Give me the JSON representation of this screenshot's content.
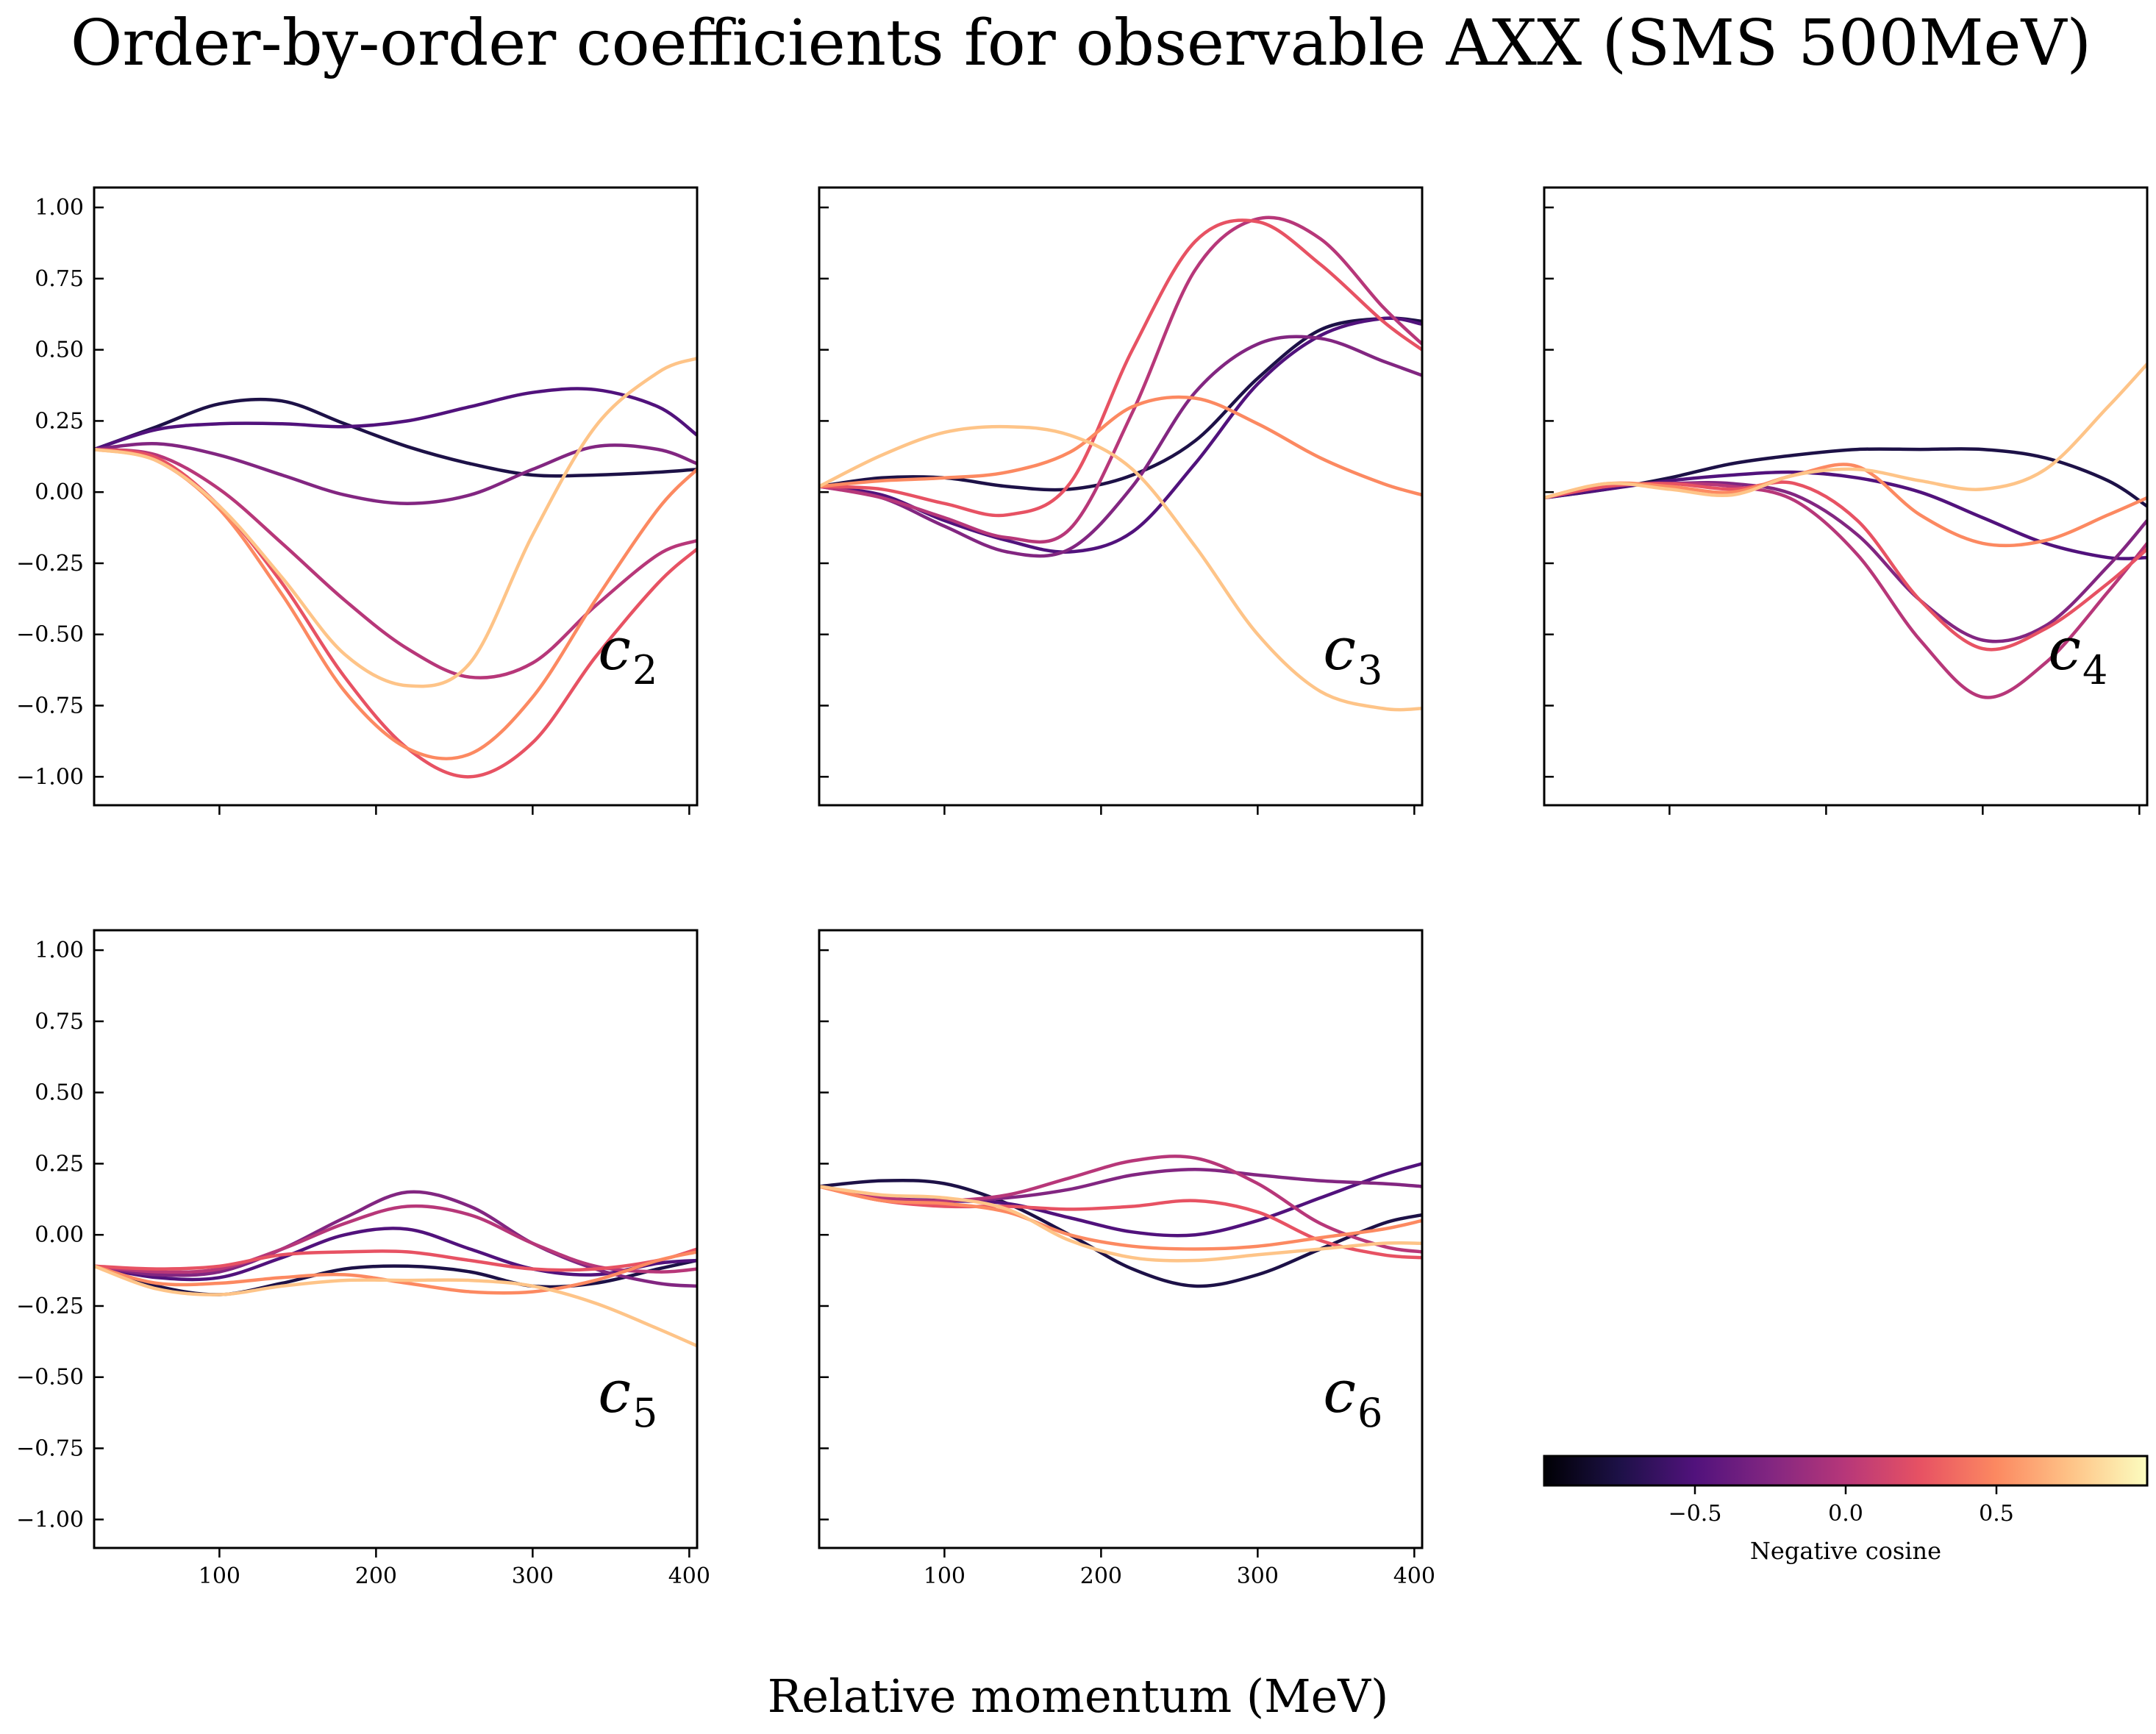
{
  "figure": {
    "title": "Order-by-order coefficients for observable AXX (SMS 500MeV)",
    "xlabel": "Relative momentum (MeV)"
  },
  "colorbar": {
    "label": "Negative cosine",
    "range": [
      -1,
      1
    ],
    "ticks": [
      -0.5,
      0.0,
      0.5
    ],
    "tick_labels": [
      "−0.5",
      "0.0",
      "0.5"
    ],
    "colormap": "magma",
    "stops": [
      "#000004",
      "#1d1147",
      "#51127c",
      "#822681",
      "#b73779",
      "#e75263",
      "#fc8961",
      "#fec488",
      "#fcfdbf"
    ]
  },
  "chart_data": [
    {
      "type": "line",
      "id": "c2",
      "label": "c",
      "subscript": "2",
      "xlim": [
        20,
        405
      ],
      "ylim": [
        -1.1,
        1.07
      ],
      "xticks": [
        100,
        200,
        300,
        400
      ],
      "yticks": [
        -1.0,
        -0.75,
        -0.5,
        -0.25,
        0.0,
        0.25,
        0.5,
        0.75,
        1.0
      ],
      "x": [
        20,
        60,
        100,
        140,
        180,
        220,
        260,
        300,
        340,
        380,
        405
      ],
      "series": [
        {
          "color": "#1d1147",
          "values": [
            0.15,
            0.23,
            0.31,
            0.32,
            0.24,
            0.16,
            0.1,
            0.06,
            0.06,
            0.07,
            0.08
          ]
        },
        {
          "color": "#51127c",
          "values": [
            0.15,
            0.22,
            0.24,
            0.24,
            0.23,
            0.25,
            0.3,
            0.35,
            0.36,
            0.3,
            0.2
          ]
        },
        {
          "color": "#822681",
          "values": [
            0.15,
            0.17,
            0.13,
            0.06,
            -0.01,
            -0.04,
            -0.01,
            0.08,
            0.16,
            0.15,
            0.1
          ]
        },
        {
          "color": "#b73779",
          "values": [
            0.15,
            0.13,
            0.01,
            -0.18,
            -0.38,
            -0.55,
            -0.65,
            -0.6,
            -0.4,
            -0.22,
            -0.17
          ]
        },
        {
          "color": "#e75263",
          "values": [
            0.15,
            0.12,
            -0.05,
            -0.32,
            -0.65,
            -0.9,
            -1.0,
            -0.88,
            -0.58,
            -0.32,
            -0.2
          ]
        },
        {
          "color": "#fc8961",
          "values": [
            0.15,
            0.11,
            -0.06,
            -0.36,
            -0.7,
            -0.9,
            -0.92,
            -0.72,
            -0.38,
            -0.06,
            0.08
          ]
        },
        {
          "color": "#fec488",
          "values": [
            0.15,
            0.11,
            -0.05,
            -0.3,
            -0.57,
            -0.68,
            -0.6,
            -0.15,
            0.23,
            0.42,
            0.47
          ]
        }
      ]
    },
    {
      "type": "line",
      "id": "c3",
      "label": "c",
      "subscript": "3",
      "xlim": [
        20,
        405
      ],
      "ylim": [
        -1.1,
        1.07
      ],
      "xticks": [
        100,
        200,
        300,
        400
      ],
      "yticks": [
        -1.0,
        -0.75,
        -0.5,
        -0.25,
        0.0,
        0.25,
        0.5,
        0.75,
        1.0
      ],
      "x": [
        20,
        60,
        100,
        140,
        180,
        220,
        260,
        300,
        340,
        380,
        405
      ],
      "series": [
        {
          "color": "#1d1147",
          "values": [
            0.02,
            0.05,
            0.05,
            0.02,
            0.01,
            0.06,
            0.18,
            0.4,
            0.57,
            0.61,
            0.6
          ]
        },
        {
          "color": "#51127c",
          "values": [
            0.02,
            -0.01,
            -0.1,
            -0.17,
            -0.21,
            -0.14,
            0.1,
            0.38,
            0.55,
            0.61,
            0.59
          ]
        },
        {
          "color": "#822681",
          "values": [
            0.02,
            -0.02,
            -0.12,
            -0.21,
            -0.2,
            0.02,
            0.35,
            0.52,
            0.54,
            0.46,
            0.41
          ]
        },
        {
          "color": "#b73779",
          "values": [
            0.02,
            -0.02,
            -0.09,
            -0.16,
            -0.13,
            0.28,
            0.78,
            0.96,
            0.89,
            0.65,
            0.52
          ]
        },
        {
          "color": "#e75263",
          "values": [
            0.02,
            0.01,
            -0.04,
            -0.08,
            0.03,
            0.5,
            0.88,
            0.95,
            0.8,
            0.6,
            0.5
          ]
        },
        {
          "color": "#fc8961",
          "values": [
            0.02,
            0.04,
            0.05,
            0.07,
            0.14,
            0.3,
            0.33,
            0.24,
            0.12,
            0.03,
            -0.01
          ]
        },
        {
          "color": "#fec488",
          "values": [
            0.02,
            0.13,
            0.21,
            0.23,
            0.2,
            0.08,
            -0.19,
            -0.5,
            -0.7,
            -0.76,
            -0.76
          ]
        }
      ]
    },
    {
      "type": "line",
      "id": "c4",
      "label": "c",
      "subscript": "4",
      "xlim": [
        20,
        405
      ],
      "ylim": [
        -1.1,
        1.07
      ],
      "xticks": [
        100,
        200,
        300,
        400
      ],
      "yticks": [
        -1.0,
        -0.75,
        -0.5,
        -0.25,
        0.0,
        0.25,
        0.5,
        0.75,
        1.0
      ],
      "x": [
        20,
        60,
        100,
        140,
        180,
        220,
        260,
        300,
        340,
        380,
        405
      ],
      "series": [
        {
          "color": "#1d1147",
          "values": [
            -0.02,
            0.01,
            0.05,
            0.1,
            0.13,
            0.15,
            0.15,
            0.15,
            0.12,
            0.04,
            -0.05
          ]
        },
        {
          "color": "#51127c",
          "values": [
            -0.02,
            0.01,
            0.04,
            0.06,
            0.07,
            0.05,
            0.0,
            -0.09,
            -0.18,
            -0.23,
            -0.23
          ]
        },
        {
          "color": "#822681",
          "values": [
            -0.02,
            0.02,
            0.03,
            0.03,
            -0.01,
            -0.15,
            -0.38,
            -0.52,
            -0.47,
            -0.26,
            -0.1
          ]
        },
        {
          "color": "#b73779",
          "values": [
            -0.02,
            0.02,
            0.03,
            0.02,
            -0.03,
            -0.22,
            -0.52,
            -0.72,
            -0.6,
            -0.35,
            -0.18
          ]
        },
        {
          "color": "#e75263",
          "values": [
            -0.02,
            0.02,
            0.03,
            0.01,
            0.03,
            -0.1,
            -0.38,
            -0.55,
            -0.48,
            -0.32,
            -0.2
          ]
        },
        {
          "color": "#fc8961",
          "values": [
            -0.02,
            0.03,
            0.02,
            0.0,
            0.06,
            0.09,
            -0.08,
            -0.18,
            -0.17,
            -0.08,
            -0.02
          ]
        },
        {
          "color": "#fec488",
          "values": [
            -0.02,
            0.03,
            0.01,
            -0.01,
            0.06,
            0.08,
            0.04,
            0.01,
            0.08,
            0.3,
            0.45
          ]
        }
      ]
    },
    {
      "type": "line",
      "id": "c5",
      "label": "c",
      "subscript": "5",
      "xlim": [
        20,
        405
      ],
      "ylim": [
        -1.1,
        1.07
      ],
      "xticks": [
        100,
        200,
        300,
        400
      ],
      "yticks": [
        -1.0,
        -0.75,
        -0.5,
        -0.25,
        0.0,
        0.25,
        0.5,
        0.75,
        1.0
      ],
      "x": [
        20,
        60,
        100,
        140,
        180,
        220,
        260,
        300,
        340,
        380,
        405
      ],
      "series": [
        {
          "color": "#1d1147",
          "values": [
            -0.11,
            -0.18,
            -0.21,
            -0.17,
            -0.12,
            -0.11,
            -0.13,
            -0.18,
            -0.17,
            -0.12,
            -0.09
          ]
        },
        {
          "color": "#51127c",
          "values": [
            -0.11,
            -0.15,
            -0.15,
            -0.08,
            0.0,
            0.02,
            -0.05,
            -0.12,
            -0.14,
            -0.1,
            -0.09
          ]
        },
        {
          "color": "#822681",
          "values": [
            -0.11,
            -0.14,
            -0.13,
            -0.05,
            0.06,
            0.15,
            0.1,
            -0.03,
            -0.12,
            -0.17,
            -0.18
          ]
        },
        {
          "color": "#b73779",
          "values": [
            -0.11,
            -0.13,
            -0.12,
            -0.05,
            0.04,
            0.1,
            0.07,
            -0.03,
            -0.11,
            -0.13,
            -0.12
          ]
        },
        {
          "color": "#e75263",
          "values": [
            -0.11,
            -0.12,
            -0.11,
            -0.07,
            -0.06,
            -0.06,
            -0.09,
            -0.12,
            -0.12,
            -0.09,
            -0.05
          ]
        },
        {
          "color": "#fc8961",
          "values": [
            -0.11,
            -0.17,
            -0.17,
            -0.15,
            -0.14,
            -0.17,
            -0.2,
            -0.2,
            -0.16,
            -0.09,
            -0.06
          ]
        },
        {
          "color": "#fec488",
          "values": [
            -0.11,
            -0.19,
            -0.21,
            -0.18,
            -0.16,
            -0.16,
            -0.16,
            -0.18,
            -0.24,
            -0.33,
            -0.39
          ]
        }
      ]
    },
    {
      "type": "line",
      "id": "c6",
      "label": "c",
      "subscript": "6",
      "xlim": [
        20,
        405
      ],
      "ylim": [
        -1.1,
        1.07
      ],
      "xticks": [
        100,
        200,
        300,
        400
      ],
      "yticks": [
        -1.0,
        -0.75,
        -0.5,
        -0.25,
        0.0,
        0.25,
        0.5,
        0.75,
        1.0
      ],
      "x": [
        20,
        60,
        100,
        140,
        180,
        220,
        260,
        300,
        340,
        380,
        405
      ],
      "series": [
        {
          "color": "#1d1147",
          "values": [
            0.17,
            0.19,
            0.18,
            0.11,
            0.0,
            -0.12,
            -0.18,
            -0.14,
            -0.05,
            0.04,
            0.07
          ]
        },
        {
          "color": "#51127c",
          "values": [
            0.17,
            0.13,
            0.12,
            0.11,
            0.06,
            0.01,
            0.0,
            0.05,
            0.13,
            0.21,
            0.25
          ]
        },
        {
          "color": "#822681",
          "values": [
            0.17,
            0.13,
            0.12,
            0.13,
            0.16,
            0.21,
            0.23,
            0.21,
            0.19,
            0.18,
            0.17
          ]
        },
        {
          "color": "#b73779",
          "values": [
            0.17,
            0.13,
            0.12,
            0.14,
            0.2,
            0.26,
            0.27,
            0.18,
            0.04,
            -0.04,
            -0.06
          ]
        },
        {
          "color": "#e75263",
          "values": [
            0.17,
            0.12,
            0.1,
            0.1,
            0.09,
            0.1,
            0.12,
            0.08,
            -0.02,
            -0.07,
            -0.08
          ]
        },
        {
          "color": "#fc8961",
          "values": [
            0.17,
            0.12,
            0.11,
            0.08,
            0.0,
            -0.04,
            -0.05,
            -0.04,
            -0.01,
            0.02,
            0.05
          ]
        },
        {
          "color": "#fec488",
          "values": [
            0.17,
            0.14,
            0.13,
            0.09,
            -0.02,
            -0.08,
            -0.09,
            -0.07,
            -0.05,
            -0.03,
            -0.03
          ]
        }
      ]
    }
  ]
}
